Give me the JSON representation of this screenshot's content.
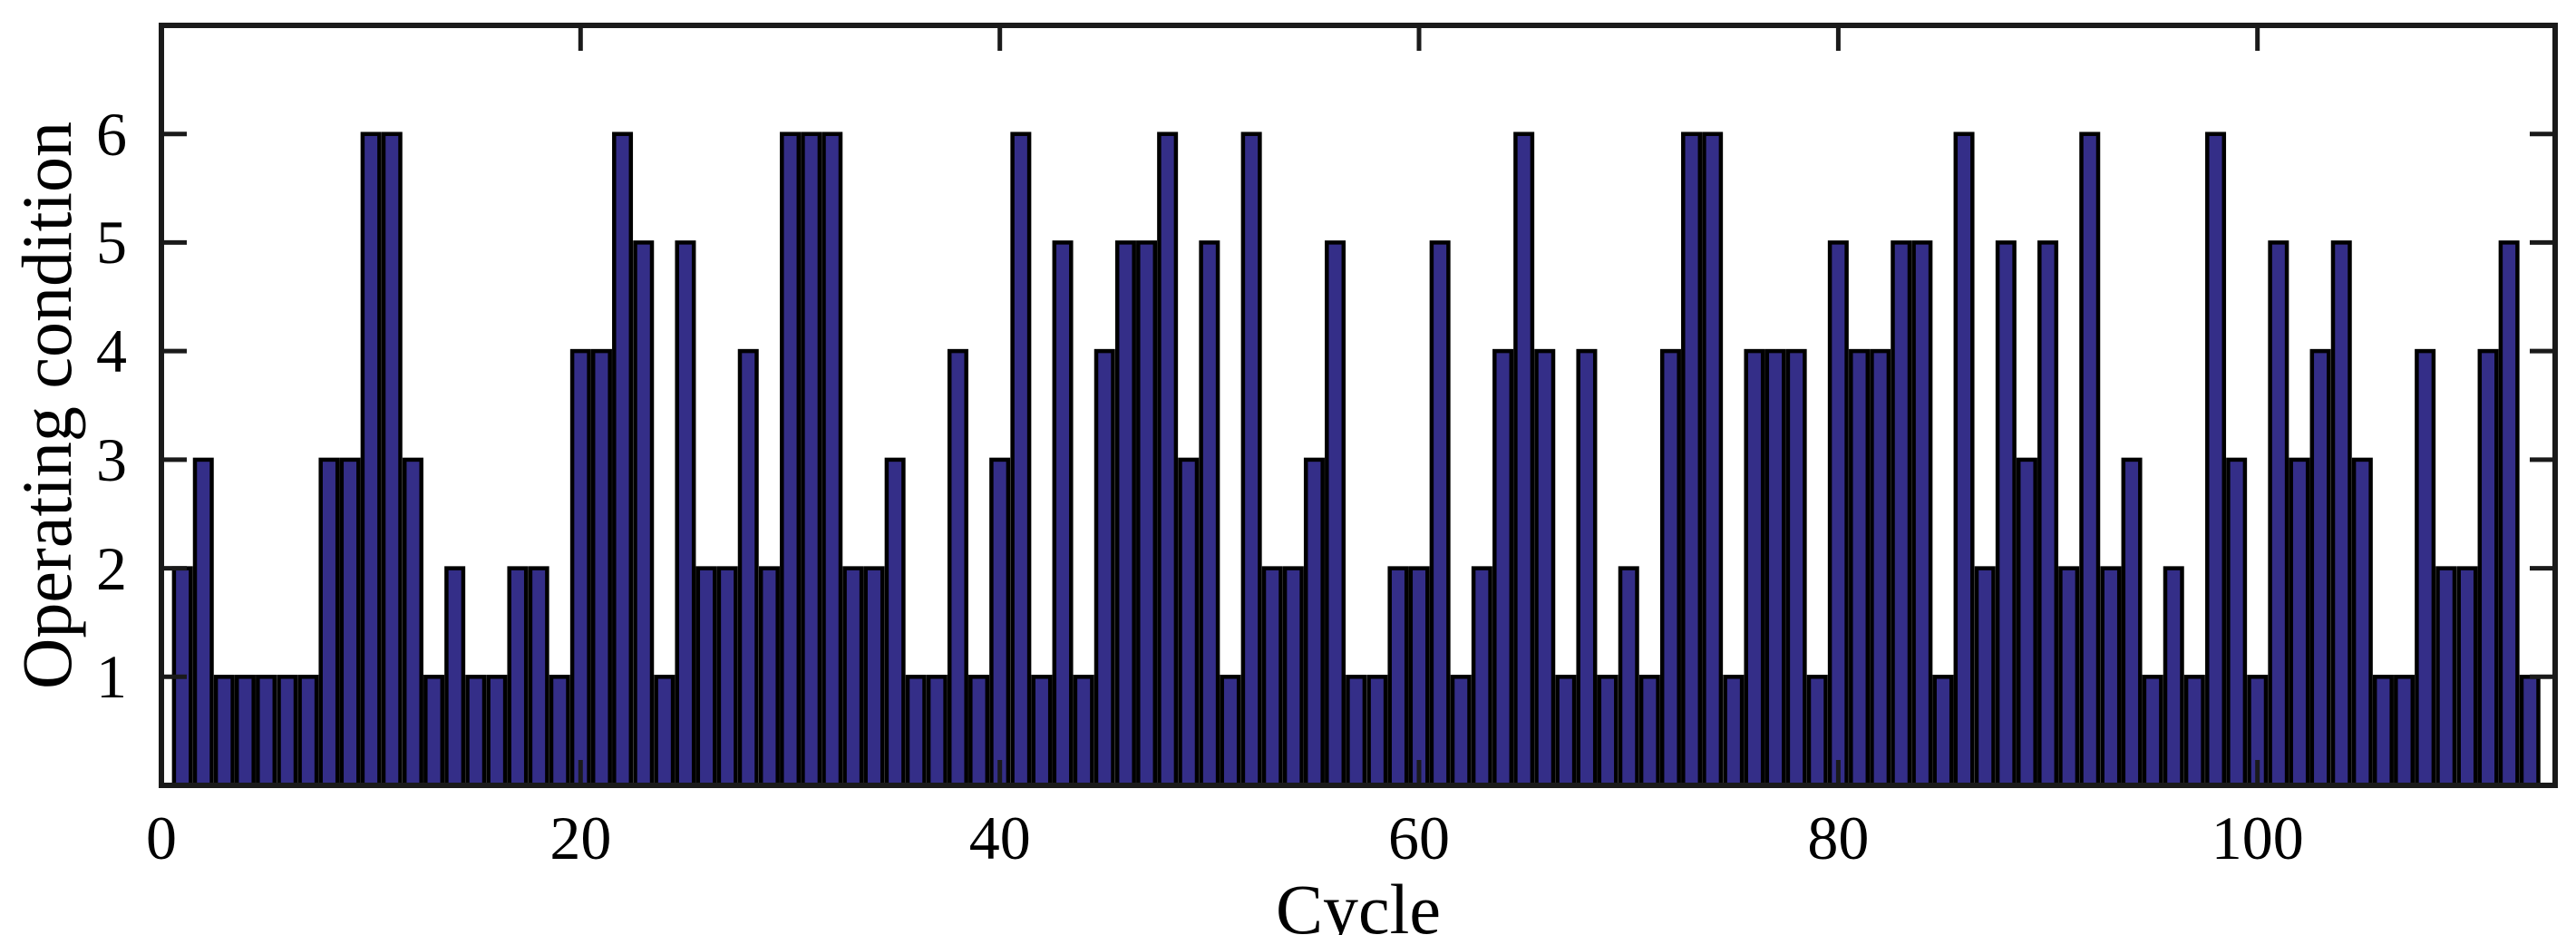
{
  "figure": {
    "background_color": "#ffffff",
    "frame_color": "#1a1a1a"
  },
  "chart_data": {
    "type": "bar",
    "title": "",
    "xlabel": "Cycle",
    "ylabel": "Operating condition",
    "x_start": 1,
    "values": [
      2,
      3,
      1,
      1,
      1,
      1,
      1,
      3,
      3,
      6,
      6,
      3,
      1,
      2,
      1,
      1,
      2,
      2,
      1,
      4,
      4,
      6,
      5,
      1,
      5,
      2,
      2,
      4,
      2,
      6,
      6,
      6,
      2,
      2,
      3,
      1,
      1,
      4,
      1,
      3,
      6,
      1,
      5,
      1,
      4,
      5,
      5,
      6,
      3,
      5,
      1,
      6,
      2,
      2,
      3,
      5,
      1,
      1,
      2,
      2,
      5,
      1,
      2,
      4,
      6,
      4,
      1,
      4,
      1,
      2,
      1,
      4,
      6,
      6,
      1,
      4,
      4,
      4,
      1,
      5,
      4,
      4,
      5,
      5,
      1,
      6,
      2,
      5,
      3,
      5,
      2,
      6,
      2,
      3,
      1,
      2,
      1,
      6,
      3,
      1,
      5,
      3,
      4,
      5,
      3,
      1,
      1,
      4,
      2,
      2,
      4,
      5,
      1
    ],
    "x_tick_labels": [
      "0",
      "20",
      "40",
      "60",
      "80",
      "100"
    ],
    "x_tick_values": [
      0,
      20,
      40,
      60,
      80,
      100
    ],
    "y_tick_labels": [
      "1",
      "2",
      "3",
      "4",
      "5",
      "6"
    ],
    "y_tick_values": [
      1,
      2,
      3,
      4,
      5,
      6
    ],
    "xlim": [
      0,
      114.2
    ],
    "ylim": [
      0,
      7
    ],
    "grid": "off",
    "legend": "none",
    "bar_width_fraction": 0.8,
    "bar_fill_color": "#342e88",
    "bar_edge_color": "#000000"
  }
}
